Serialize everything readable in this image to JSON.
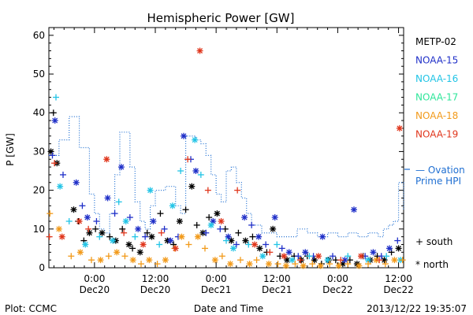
{
  "chart_data": {
    "type": "scatter",
    "title": "Hemispheric Power [GW]",
    "ylabel": "P [GW]",
    "xlabel": "Date and Time",
    "ylim": [
      0,
      62
    ],
    "yticks": [
      0,
      10,
      20,
      30,
      40,
      50,
      60
    ],
    "xlim_hours": [
      -9,
      61
    ],
    "xticks": [
      {
        "hour": 0,
        "time": "0:00",
        "date": "Dec20"
      },
      {
        "hour": 12,
        "time": "12:00",
        "date": "Dec20"
      },
      {
        "hour": 24,
        "time": "0:00",
        "date": "Dec21"
      },
      {
        "hour": 36,
        "time": "12:00",
        "date": "Dec21"
      },
      {
        "hour": 48,
        "time": "0:00",
        "date": "Dec22"
      },
      {
        "hour": 60,
        "time": "12:00",
        "date": "Dec22"
      }
    ],
    "legend": [
      {
        "name": "METP-02",
        "color": "#000000"
      },
      {
        "name": "NOAA-15",
        "color": "#1f2fc8"
      },
      {
        "name": "NOAA-16",
        "color": "#22c4e6"
      },
      {
        "name": "NOAA-17",
        "color": "#2ee69a"
      },
      {
        "name": "NOAA-18",
        "color": "#f29a1a"
      },
      {
        "name": "NOAA-19",
        "color": "#e0361c"
      }
    ],
    "ovation_label_line1": "— Ovation",
    "ovation_label_line2": "Prime HPI",
    "ovation_color": "#1f6fd2",
    "marker_legend": [
      {
        "symbol": "+",
        "label": "south"
      },
      {
        "symbol": "*",
        "label": "north"
      }
    ],
    "ovation_hpi": [
      [
        -9,
        29
      ],
      [
        -7,
        33
      ],
      [
        -5,
        39
      ],
      [
        -3,
        31
      ],
      [
        -1,
        19
      ],
      [
        0,
        14
      ],
      [
        1,
        10
      ],
      [
        2,
        9
      ],
      [
        3,
        14
      ],
      [
        4,
        24
      ],
      [
        5,
        35
      ],
      [
        7,
        26
      ],
      [
        8,
        17
      ],
      [
        9,
        12
      ],
      [
        10,
        10
      ],
      [
        11,
        16
      ],
      [
        12,
        20
      ],
      [
        14,
        21
      ],
      [
        16,
        16
      ],
      [
        17,
        14
      ],
      [
        18,
        34
      ],
      [
        20,
        33
      ],
      [
        21,
        32
      ],
      [
        22,
        29
      ],
      [
        23,
        24
      ],
      [
        24,
        19
      ],
      [
        25,
        17
      ],
      [
        26,
        25
      ],
      [
        27,
        26
      ],
      [
        28,
        22
      ],
      [
        29,
        18
      ],
      [
        30,
        14
      ],
      [
        31,
        11
      ],
      [
        33,
        9
      ],
      [
        36,
        8
      ],
      [
        40,
        10
      ],
      [
        42,
        9
      ],
      [
        44,
        8
      ],
      [
        46,
        9
      ],
      [
        48,
        8
      ],
      [
        50,
        9
      ],
      [
        52,
        8
      ],
      [
        54,
        9
      ],
      [
        56,
        8
      ],
      [
        57,
        10
      ],
      [
        58,
        11
      ],
      [
        59,
        12
      ],
      [
        60,
        22
      ],
      [
        61,
        15
      ]
    ],
    "series": [
      {
        "name": "METP-02",
        "color": "#000000",
        "points": [
          [
            -8.6,
            30,
            "n"
          ],
          [
            -8.1,
            40,
            "s"
          ],
          [
            -7.4,
            27,
            "n"
          ],
          [
            -4.1,
            15,
            "n"
          ],
          [
            -3.2,
            12,
            "s"
          ],
          [
            -2.1,
            7,
            "s"
          ],
          [
            -1.0,
            9,
            "n"
          ],
          [
            0.2,
            10,
            "s"
          ],
          [
            1.5,
            9,
            "n"
          ],
          [
            3.0,
            8,
            "s"
          ],
          [
            4.2,
            7,
            "n"
          ],
          [
            5.5,
            10,
            "s"
          ],
          [
            6.8,
            6,
            "n"
          ],
          [
            7.5,
            5,
            "s"
          ],
          [
            9.0,
            4,
            "n"
          ],
          [
            10.4,
            9,
            "s"
          ],
          [
            11.3,
            8,
            "n"
          ],
          [
            13.0,
            14,
            "s"
          ],
          [
            14.4,
            7,
            "n"
          ],
          [
            15.6,
            6,
            "s"
          ],
          [
            16.8,
            12,
            "n"
          ],
          [
            18.0,
            15,
            "s"
          ],
          [
            19.2,
            21,
            "n"
          ],
          [
            20.2,
            11,
            "s"
          ],
          [
            21.4,
            9,
            "n"
          ],
          [
            22.6,
            13,
            "s"
          ],
          [
            24.2,
            14,
            "n"
          ],
          [
            25.8,
            10,
            "s"
          ],
          [
            27.0,
            7,
            "n"
          ],
          [
            28.4,
            9,
            "s"
          ],
          [
            29.8,
            7,
            "n"
          ],
          [
            31.2,
            8,
            "s"
          ],
          [
            32.6,
            5,
            "n"
          ],
          [
            34.0,
            4,
            "s"
          ],
          [
            35.2,
            10,
            "n"
          ],
          [
            36.6,
            3,
            "s"
          ],
          [
            38.0,
            2,
            "n"
          ],
          [
            39.4,
            3,
            "s"
          ],
          [
            40.8,
            2,
            "n"
          ],
          [
            42.0,
            3,
            "s"
          ],
          [
            43.4,
            2,
            "n"
          ],
          [
            44.8,
            1,
            "s"
          ],
          [
            46.2,
            2,
            "n"
          ],
          [
            47.6,
            2,
            "s"
          ],
          [
            49.0,
            1,
            "n"
          ],
          [
            50.4,
            2,
            "s"
          ],
          [
            51.8,
            1,
            "n"
          ],
          [
            53.0,
            3,
            "s"
          ],
          [
            54.4,
            2,
            "n"
          ],
          [
            55.8,
            3,
            "s"
          ],
          [
            57.2,
            2,
            "n"
          ],
          [
            58.6,
            4,
            "s"
          ],
          [
            60.0,
            5,
            "n"
          ]
        ]
      },
      {
        "name": "NOAA-15",
        "color": "#1f2fc8",
        "points": [
          [
            -8.3,
            29,
            "s"
          ],
          [
            -7.8,
            38,
            "n"
          ],
          [
            -6.2,
            24,
            "s"
          ],
          [
            -3.6,
            22,
            "n"
          ],
          [
            -2.4,
            16,
            "s"
          ],
          [
            -1.4,
            13,
            "n"
          ],
          [
            0.4,
            12,
            "s"
          ],
          [
            2.6,
            18,
            "n"
          ],
          [
            4.0,
            14,
            "s"
          ],
          [
            5.3,
            26,
            "n"
          ],
          [
            7.0,
            13,
            "s"
          ],
          [
            8.6,
            10,
            "n"
          ],
          [
            10.0,
            8,
            "s"
          ],
          [
            11.6,
            12,
            "n"
          ],
          [
            13.8,
            10,
            "s"
          ],
          [
            15.0,
            7,
            "n"
          ],
          [
            16.5,
            8,
            "s"
          ],
          [
            17.6,
            34,
            "n"
          ],
          [
            19.0,
            28,
            "s"
          ],
          [
            20.0,
            25,
            "n"
          ],
          [
            22.0,
            9,
            "s"
          ],
          [
            23.4,
            12,
            "n"
          ],
          [
            24.8,
            10,
            "s"
          ],
          [
            26.4,
            8,
            "n"
          ],
          [
            28.0,
            6,
            "s"
          ],
          [
            29.6,
            13,
            "n"
          ],
          [
            31.0,
            11,
            "s"
          ],
          [
            32.4,
            8,
            "n"
          ],
          [
            33.8,
            6,
            "s"
          ],
          [
            35.6,
            13,
            "n"
          ],
          [
            37.0,
            5,
            "s"
          ],
          [
            38.4,
            4,
            "n"
          ],
          [
            40.2,
            3,
            "s"
          ],
          [
            41.6,
            4,
            "n"
          ],
          [
            43.2,
            3,
            "s"
          ],
          [
            45.0,
            8,
            "n"
          ],
          [
            47.0,
            3,
            "s"
          ],
          [
            49.4,
            2,
            "n"
          ],
          [
            51.2,
            15,
            "n"
          ],
          [
            53.4,
            3,
            "s"
          ],
          [
            55.0,
            4,
            "n"
          ],
          [
            56.6,
            3,
            "s"
          ],
          [
            58.2,
            5,
            "n"
          ],
          [
            59.8,
            7,
            "s"
          ]
        ]
      },
      {
        "name": "NOAA-16",
        "color": "#22c4e6",
        "points": [
          [
            -7.6,
            44,
            "s"
          ],
          [
            -6.8,
            21,
            "n"
          ],
          [
            -5.0,
            12,
            "s"
          ],
          [
            -1.8,
            6,
            "n"
          ],
          [
            1.0,
            8,
            "s"
          ],
          [
            3.6,
            7,
            "n"
          ],
          [
            4.8,
            17,
            "s"
          ],
          [
            6.2,
            12,
            "n"
          ],
          [
            8.0,
            8,
            "s"
          ],
          [
            11.0,
            20,
            "n"
          ],
          [
            12.8,
            6,
            "s"
          ],
          [
            15.4,
            16,
            "n"
          ],
          [
            17.0,
            25,
            "s"
          ],
          [
            19.8,
            33,
            "n"
          ],
          [
            21.0,
            24,
            "s"
          ],
          [
            23.0,
            11,
            "n"
          ],
          [
            26.0,
            7,
            "s"
          ],
          [
            27.4,
            5,
            "n"
          ],
          [
            30.4,
            6,
            "s"
          ],
          [
            33.2,
            3,
            "n"
          ],
          [
            36.0,
            6,
            "s"
          ],
          [
            39.0,
            2,
            "n"
          ],
          [
            42.4,
            3,
            "s"
          ],
          [
            46.0,
            2,
            "n"
          ],
          [
            50.0,
            3,
            "s"
          ],
          [
            54.0,
            2,
            "n"
          ],
          [
            57.6,
            3,
            "s"
          ],
          [
            60.4,
            2,
            "n"
          ]
        ]
      },
      {
        "name": "NOAA-18",
        "color": "#f29a1a",
        "points": [
          [
            -8.8,
            14,
            "s"
          ],
          [
            -7.0,
            10,
            "n"
          ],
          [
            -4.6,
            3,
            "s"
          ],
          [
            -2.8,
            4,
            "n"
          ],
          [
            -0.6,
            2,
            "s"
          ],
          [
            1.2,
            2,
            "n"
          ],
          [
            2.8,
            3,
            "s"
          ],
          [
            4.4,
            4,
            "n"
          ],
          [
            6.0,
            3,
            "s"
          ],
          [
            7.6,
            2,
            "n"
          ],
          [
            9.2,
            1,
            "s"
          ],
          [
            10.8,
            2,
            "n"
          ],
          [
            12.4,
            1,
            "s"
          ],
          [
            14.0,
            2,
            "n"
          ],
          [
            15.8,
            5,
            "s"
          ],
          [
            17.2,
            8,
            "n"
          ],
          [
            18.6,
            6,
            "s"
          ],
          [
            20.4,
            8,
            "n"
          ],
          [
            21.8,
            5,
            "s"
          ],
          [
            23.8,
            2,
            "n"
          ],
          [
            25.2,
            3,
            "s"
          ],
          [
            26.8,
            1,
            "n"
          ],
          [
            28.8,
            2,
            "s"
          ],
          [
            30.6,
            1,
            "n"
          ],
          [
            32.0,
            2,
            "s"
          ],
          [
            34.4,
            1,
            "n"
          ],
          [
            36.2,
            1,
            "s"
          ],
          [
            37.8,
            0.5,
            "n"
          ],
          [
            39.6,
            1,
            "s"
          ],
          [
            41.2,
            0.5,
            "n"
          ],
          [
            43.0,
            1,
            "s"
          ],
          [
            44.6,
            0.5,
            "n"
          ],
          [
            46.4,
            1,
            "s"
          ],
          [
            48.2,
            0.5,
            "n"
          ],
          [
            50.0,
            1,
            "s"
          ],
          [
            52.2,
            0.5,
            "n"
          ],
          [
            54.0,
            1,
            "s"
          ],
          [
            55.6,
            2,
            "n"
          ],
          [
            57.4,
            1,
            "s"
          ],
          [
            59.2,
            2,
            "n"
          ],
          [
            60.8,
            2,
            "s"
          ]
        ]
      },
      {
        "name": "NOAA-19",
        "color": "#e0361c",
        "points": [
          [
            -8.9,
            8,
            "s"
          ],
          [
            -7.9,
            27,
            "s"
          ],
          [
            -6.4,
            8,
            "n"
          ],
          [
            -3.0,
            12,
            "n"
          ],
          [
            -1.2,
            10,
            "s"
          ],
          [
            2.4,
            28,
            "n"
          ],
          [
            5.8,
            9,
            "s"
          ],
          [
            9.6,
            6,
            "n"
          ],
          [
            13.2,
            9,
            "s"
          ],
          [
            16.0,
            5,
            "n"
          ],
          [
            18.4,
            28,
            "s"
          ],
          [
            20.8,
            56,
            "n"
          ],
          [
            22.4,
            20,
            "s"
          ],
          [
            25.0,
            12,
            "n"
          ],
          [
            28.2,
            20,
            "s"
          ],
          [
            31.6,
            6,
            "n"
          ],
          [
            34.6,
            4,
            "s"
          ],
          [
            37.4,
            3,
            "n"
          ],
          [
            40.6,
            2,
            "s"
          ],
          [
            44.2,
            3,
            "n"
          ],
          [
            48.6,
            2,
            "s"
          ],
          [
            52.6,
            3,
            "n"
          ],
          [
            56.2,
            2,
            "s"
          ],
          [
            60.2,
            36,
            "n"
          ]
        ]
      }
    ]
  },
  "footer": {
    "plot_credit": "Plot: CCMC",
    "timestamp": "2013/12/22 19:35:07"
  }
}
